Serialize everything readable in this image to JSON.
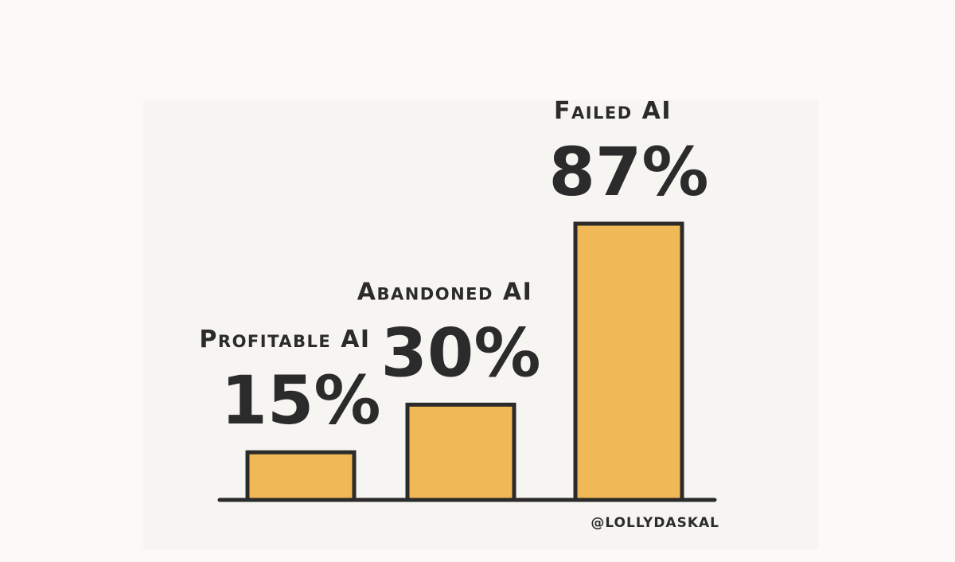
{
  "chart_data": {
    "type": "bar",
    "categories": [
      "Profitable AI",
      "Abandoned AI",
      "Failed AI"
    ],
    "values": [
      15,
      30,
      87
    ],
    "value_labels": [
      "15%",
      "30%",
      "87%"
    ],
    "color": "#f0b955",
    "source": "@LOLLYDASKAL"
  }
}
